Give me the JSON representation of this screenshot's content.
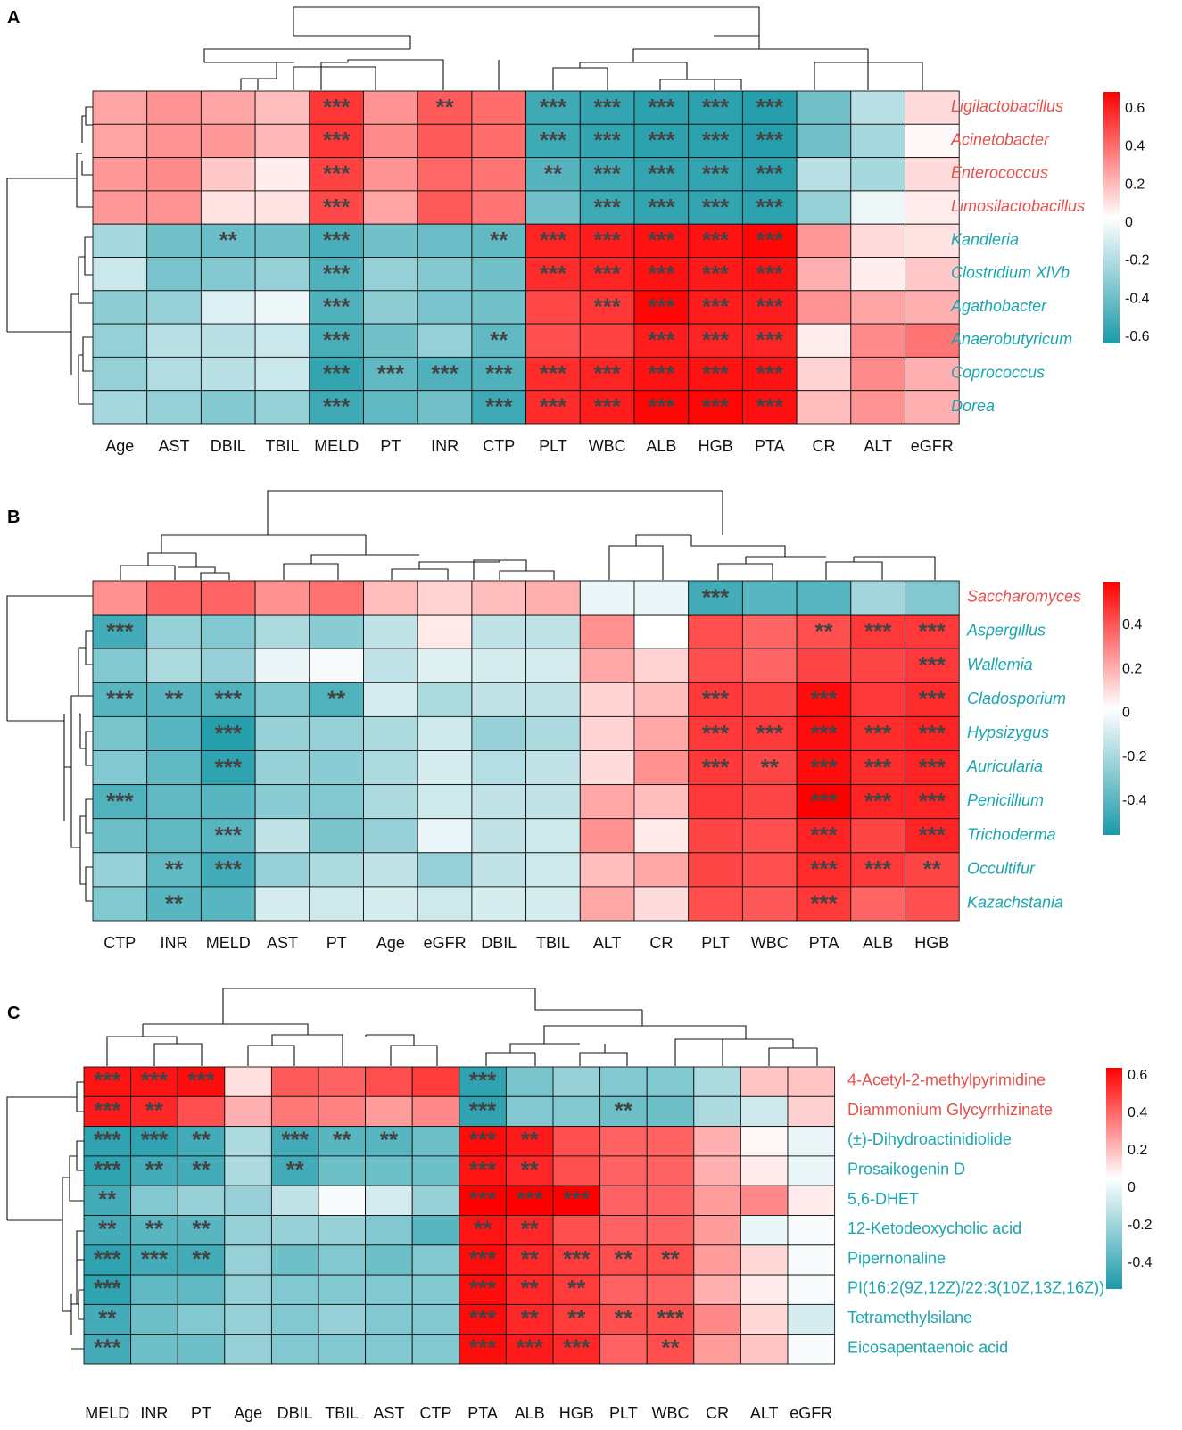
{
  "colors": {
    "neg": "#1a9aa8",
    "mid": "#ffffff",
    "pos": "#ff0000",
    "label_pos": "#e8504b",
    "label_neg": "#1aa6b0"
  },
  "chart_data": [
    {
      "type": "heatmap",
      "panel": "A",
      "columns": [
        "Age",
        "AST",
        "DBIL",
        "TBIL",
        "MELD",
        "PT",
        "INR",
        "CTP",
        "PLT",
        "WBC",
        "ALB",
        "HGB",
        "PTA",
        "CR",
        "ALT",
        "eGFR"
      ],
      "rows": [
        "Ligilactobacillus",
        "Acinetobacter",
        "Enterococcus",
        "Limosilactobacillus",
        "Kandleria",
        "Clostridium XlVb",
        "Agathobacter",
        "Anaerobutyricum",
        "Coprococcus",
        "Dorea"
      ],
      "row_groups": [
        "pos",
        "pos",
        "pos",
        "pos",
        "neg",
        "neg",
        "neg",
        "neg",
        "neg",
        "neg"
      ],
      "values": [
        [
          0.25,
          0.3,
          0.25,
          0.18,
          0.55,
          0.3,
          0.45,
          0.4,
          -0.55,
          -0.58,
          -0.6,
          -0.6,
          -0.62,
          -0.4,
          -0.2,
          0.1
        ],
        [
          0.25,
          0.3,
          0.28,
          0.2,
          0.55,
          0.32,
          0.45,
          0.4,
          -0.55,
          -0.58,
          -0.6,
          -0.6,
          -0.62,
          -0.4,
          -0.25,
          0.02
        ],
        [
          0.28,
          0.32,
          0.15,
          0.05,
          0.52,
          0.3,
          0.42,
          0.38,
          -0.48,
          -0.55,
          -0.58,
          -0.58,
          -0.6,
          -0.2,
          -0.25,
          0.1
        ],
        [
          0.28,
          0.3,
          0.08,
          0.08,
          0.5,
          0.25,
          0.45,
          0.38,
          -0.4,
          -0.55,
          -0.58,
          -0.58,
          -0.6,
          -0.3,
          -0.05,
          0.05
        ],
        [
          -0.25,
          -0.4,
          -0.42,
          -0.4,
          -0.52,
          -0.4,
          -0.42,
          -0.45,
          0.6,
          0.62,
          0.65,
          0.65,
          0.68,
          0.28,
          0.1,
          0.08
        ],
        [
          -0.15,
          -0.38,
          -0.35,
          -0.3,
          -0.5,
          -0.3,
          -0.35,
          -0.4,
          0.58,
          0.6,
          0.65,
          0.63,
          0.65,
          0.22,
          0.05,
          0.15
        ],
        [
          -0.32,
          -0.3,
          -0.1,
          -0.05,
          -0.5,
          -0.32,
          -0.38,
          -0.4,
          0.5,
          0.55,
          0.68,
          0.62,
          0.62,
          0.3,
          0.25,
          0.22
        ],
        [
          -0.3,
          -0.2,
          -0.2,
          -0.15,
          -0.52,
          -0.4,
          -0.3,
          -0.45,
          0.48,
          0.52,
          0.62,
          0.6,
          0.6,
          0.05,
          0.32,
          0.38
        ],
        [
          -0.3,
          -0.22,
          -0.2,
          -0.15,
          -0.58,
          -0.45,
          -0.5,
          -0.5,
          0.58,
          0.6,
          0.65,
          0.65,
          0.65,
          0.12,
          0.32,
          0.22
        ],
        [
          -0.25,
          -0.3,
          -0.35,
          -0.3,
          -0.55,
          -0.45,
          -0.4,
          -0.55,
          0.58,
          0.62,
          0.68,
          0.68,
          0.66,
          0.18,
          0.3,
          0.22
        ]
      ],
      "stars": [
        [
          "",
          "",
          "",
          "",
          "***",
          "",
          "**",
          "",
          "***",
          "***",
          "***",
          "***",
          "***",
          "",
          "",
          ""
        ],
        [
          "",
          "",
          "",
          "",
          "***",
          "",
          "",
          "",
          "***",
          "***",
          "***",
          "***",
          "***",
          "",
          "",
          ""
        ],
        [
          "",
          "",
          "",
          "",
          "***",
          "",
          "",
          "",
          "**",
          "***",
          "***",
          "***",
          "***",
          "",
          "",
          ""
        ],
        [
          "",
          "",
          "",
          "",
          "***",
          "",
          "",
          "",
          "",
          "***",
          "***",
          "***",
          "***",
          "",
          "",
          ""
        ],
        [
          "",
          "",
          "**",
          "",
          "***",
          "",
          "",
          "**",
          "***",
          "***",
          "***",
          "***",
          "***",
          "",
          "",
          ""
        ],
        [
          "",
          "",
          "",
          "",
          "***",
          "",
          "",
          "",
          "***",
          "***",
          "***",
          "***",
          "***",
          "",
          "",
          ""
        ],
        [
          "",
          "",
          "",
          "",
          "***",
          "",
          "",
          "",
          "",
          "***",
          "***",
          "***",
          "***",
          "",
          "",
          ""
        ],
        [
          "",
          "",
          "",
          "",
          "***",
          "",
          "",
          "**",
          "",
          "",
          "***",
          "***",
          "***",
          "",
          "",
          ""
        ],
        [
          "",
          "",
          "",
          "",
          "***",
          "***",
          "***",
          "***",
          "***",
          "***",
          "***",
          "***",
          "***",
          "",
          "",
          ""
        ],
        [
          "",
          "",
          "",
          "",
          "***",
          "",
          "",
          "***",
          "***",
          "***",
          "***",
          "***",
          "***",
          "",
          "",
          ""
        ]
      ],
      "legend_ticks": [
        "0.6",
        "0.4",
        "0.2",
        "0",
        "-0.2",
        "-0.4",
        "-0.6"
      ],
      "legend_range": [
        -0.65,
        0.7
      ]
    },
    {
      "type": "heatmap",
      "panel": "B",
      "columns": [
        "CTP",
        "INR",
        "MELD",
        "AST",
        "PT",
        "Age",
        "eGFR",
        "DBIL",
        "TBIL",
        "ALT",
        "CR",
        "PLT",
        "WBC",
        "PTA",
        "ALB",
        "HGB"
      ],
      "rows": [
        "Saccharomyces",
        "Aspergillus",
        "Wallemia",
        "Cladosporium",
        "Hypsizygus",
        "Auricularia",
        "Penicillium",
        "Trichoderma",
        "Occultifur",
        "Kazachstania"
      ],
      "row_groups": [
        "pos",
        "neg",
        "neg",
        "neg",
        "neg",
        "neg",
        "neg",
        "neg",
        "neg",
        "neg"
      ],
      "values": [
        [
          0.25,
          0.35,
          0.35,
          0.25,
          0.32,
          0.15,
          0.1,
          0.15,
          0.18,
          -0.05,
          -0.05,
          -0.45,
          -0.4,
          -0.4,
          -0.22,
          -0.3
        ],
        [
          -0.45,
          -0.25,
          -0.3,
          -0.2,
          -0.28,
          -0.15,
          0.05,
          -0.15,
          -0.15,
          0.25,
          0.0,
          0.4,
          0.35,
          0.4,
          0.45,
          0.45
        ],
        [
          -0.3,
          -0.2,
          -0.25,
          -0.05,
          -0.02,
          -0.15,
          -0.08,
          -0.1,
          -0.1,
          0.2,
          0.1,
          0.4,
          0.35,
          0.42,
          0.42,
          0.45
        ],
        [
          -0.4,
          -0.4,
          -0.42,
          -0.3,
          -0.42,
          -0.1,
          -0.2,
          -0.15,
          -0.15,
          0.1,
          0.15,
          0.45,
          0.42,
          0.55,
          0.45,
          0.48
        ],
        [
          -0.32,
          -0.4,
          -0.52,
          -0.25,
          -0.25,
          -0.2,
          -0.12,
          -0.25,
          -0.2,
          0.1,
          0.2,
          0.45,
          0.45,
          0.55,
          0.48,
          0.5
        ],
        [
          -0.3,
          -0.38,
          -0.5,
          -0.25,
          -0.28,
          -0.2,
          -0.1,
          -0.18,
          -0.15,
          0.08,
          0.25,
          0.45,
          0.42,
          0.55,
          0.48,
          0.5
        ],
        [
          -0.42,
          -0.38,
          -0.4,
          -0.28,
          -0.3,
          -0.2,
          -0.12,
          -0.15,
          -0.15,
          0.2,
          0.15,
          0.45,
          0.42,
          0.58,
          0.5,
          0.5
        ],
        [
          -0.35,
          -0.38,
          -0.4,
          -0.15,
          -0.32,
          -0.25,
          -0.05,
          -0.15,
          -0.12,
          0.25,
          0.05,
          0.42,
          0.4,
          0.5,
          0.42,
          0.5
        ],
        [
          -0.25,
          -0.38,
          -0.45,
          -0.25,
          -0.2,
          -0.15,
          -0.25,
          -0.15,
          -0.12,
          0.15,
          0.2,
          0.42,
          0.4,
          0.48,
          0.45,
          0.42
        ],
        [
          -0.3,
          -0.4,
          -0.4,
          -0.1,
          -0.12,
          -0.1,
          -0.12,
          -0.1,
          -0.1,
          0.2,
          0.08,
          0.4,
          0.38,
          0.45,
          0.35,
          0.4
        ]
      ],
      "stars": [
        [
          "",
          "",
          "",
          "",
          "",
          "",
          "",
          "",
          "",
          "",
          "",
          "***",
          "",
          "",
          "",
          ""
        ],
        [
          "***",
          "",
          "",
          "",
          "",
          "",
          "",
          "",
          "",
          "",
          "",
          "",
          "",
          "**",
          "***",
          "***"
        ],
        [
          "",
          "",
          "",
          "",
          "",
          "",
          "",
          "",
          "",
          "",
          "",
          "",
          "",
          "",
          "",
          "***"
        ],
        [
          "***",
          "**",
          "***",
          "",
          "**",
          "",
          "",
          "",
          "",
          "",
          "",
          "***",
          "",
          "***",
          "",
          "***"
        ],
        [
          "",
          "",
          "***",
          "",
          "",
          "",
          "",
          "",
          "",
          "",
          "",
          "***",
          "***",
          "***",
          "***",
          "***"
        ],
        [
          "",
          "",
          "***",
          "",
          "",
          "",
          "",
          "",
          "",
          "",
          "",
          "***",
          "**",
          "***",
          "***",
          "***"
        ],
        [
          "***",
          "",
          "",
          "",
          "",
          "",
          "",
          "",
          "",
          "",
          "",
          "",
          "",
          "***",
          "***",
          "***"
        ],
        [
          "",
          "",
          "***",
          "",
          "",
          "",
          "",
          "",
          "",
          "",
          "",
          "",
          "",
          "***",
          "",
          "***"
        ],
        [
          "",
          "**",
          "***",
          "",
          "",
          "",
          "",
          "",
          "",
          "",
          "",
          "",
          "",
          "***",
          "***",
          "**"
        ],
        [
          "",
          "**",
          "",
          "",
          "",
          "",
          "",
          "",
          "",
          "",
          "",
          "",
          "",
          "***",
          "",
          ""
        ]
      ],
      "legend_ticks": [
        "0.4",
        "0.2",
        "0",
        "-0.2",
        "-0.4"
      ],
      "legend_range": [
        -0.55,
        0.58
      ]
    },
    {
      "type": "heatmap",
      "panel": "C",
      "columns": [
        "MELD",
        "INR",
        "PT",
        "Age",
        "DBIL",
        "TBIL",
        "AST",
        "CTP",
        "PTA",
        "ALB",
        "HGB",
        "PLT",
        "WBC",
        "CR",
        "ALT",
        "eGFR"
      ],
      "rows": [
        "4-Acetyl-2-methylpyrimidine",
        "Diammonium Glycyrrhizinate",
        "(±)-Dihydroactinidiolide",
        "Prosaikogenin D",
        "5,6-DHET",
        "12-Ketodeoxycholic acid",
        "Pipernonaline",
        "PI(16:2(9Z,12Z)/22:3(10Z,13Z,16Z))",
        "Tetramethylsilane",
        "Eicosapentaenoic acid"
      ],
      "row_groups": [
        "pos",
        "pos",
        "neg",
        "neg",
        "neg",
        "neg",
        "neg",
        "neg",
        "neg",
        "neg"
      ],
      "values": [
        [
          0.6,
          0.6,
          0.62,
          0.08,
          0.42,
          0.4,
          0.45,
          0.5,
          -0.5,
          -0.32,
          -0.25,
          -0.3,
          -0.3,
          -0.2,
          0.15,
          0.15
        ],
        [
          0.58,
          0.55,
          0.45,
          0.2,
          0.35,
          0.32,
          0.25,
          0.3,
          -0.5,
          -0.3,
          -0.3,
          -0.35,
          -0.35,
          -0.2,
          -0.12,
          0.12
        ],
        [
          -0.5,
          -0.5,
          -0.45,
          -0.2,
          -0.45,
          -0.4,
          -0.4,
          -0.35,
          0.62,
          0.58,
          0.45,
          0.4,
          0.4,
          0.2,
          0.02,
          -0.05
        ],
        [
          -0.5,
          -0.45,
          -0.45,
          -0.2,
          -0.45,
          -0.35,
          -0.35,
          -0.35,
          0.6,
          0.55,
          0.45,
          0.4,
          0.4,
          0.2,
          0.05,
          -0.05
        ],
        [
          -0.45,
          -0.3,
          -0.25,
          -0.25,
          -0.15,
          -0.02,
          -0.1,
          -0.25,
          0.65,
          0.68,
          0.65,
          0.4,
          0.4,
          0.25,
          0.3,
          0.05
        ],
        [
          -0.45,
          -0.4,
          -0.4,
          -0.25,
          -0.25,
          -0.25,
          -0.3,
          -0.4,
          0.6,
          0.55,
          0.45,
          0.4,
          0.4,
          0.25,
          -0.05,
          -0.02
        ],
        [
          -0.5,
          -0.45,
          -0.45,
          -0.25,
          -0.35,
          -0.3,
          -0.35,
          -0.3,
          0.62,
          0.55,
          0.5,
          0.45,
          0.45,
          0.25,
          0.1,
          -0.02
        ],
        [
          -0.5,
          -0.38,
          -0.38,
          -0.25,
          -0.3,
          -0.3,
          -0.3,
          -0.3,
          0.62,
          0.55,
          0.5,
          0.4,
          0.4,
          0.2,
          0.05,
          -0.02
        ],
        [
          -0.45,
          -0.35,
          -0.3,
          -0.25,
          -0.3,
          -0.25,
          -0.3,
          -0.3,
          0.62,
          0.55,
          0.5,
          0.45,
          0.45,
          0.3,
          0.1,
          -0.1
        ],
        [
          -0.45,
          -0.35,
          -0.35,
          -0.25,
          -0.3,
          -0.3,
          -0.3,
          -0.3,
          0.62,
          0.58,
          0.55,
          0.4,
          0.45,
          0.25,
          0.15,
          -0.02
        ]
      ],
      "stars": [
        [
          "***",
          "***",
          "***",
          "",
          "",
          "",
          "",
          "",
          "***",
          "",
          "",
          "",
          "",
          "",
          "",
          ""
        ],
        [
          "***",
          "**",
          "",
          "",
          "",
          "",
          "",
          "",
          "***",
          "",
          "",
          "**",
          "",
          "",
          "",
          ""
        ],
        [
          "***",
          "***",
          "**",
          "",
          "***",
          "**",
          "**",
          "",
          "***",
          "**",
          "",
          "",
          "",
          "",
          "",
          ""
        ],
        [
          "***",
          "**",
          "**",
          "",
          "**",
          "",
          "",
          "",
          "***",
          "**",
          "",
          "",
          "",
          "",
          "",
          ""
        ],
        [
          "**",
          "",
          "",
          "",
          "",
          "",
          "",
          "",
          "***",
          "***",
          "***",
          "",
          "",
          "",
          "",
          ""
        ],
        [
          "**",
          "**",
          "**",
          "",
          "",
          "",
          "",
          "",
          "**",
          "**",
          "",
          "",
          "",
          "",
          "",
          ""
        ],
        [
          "***",
          "***",
          "**",
          "",
          "",
          "",
          "",
          "",
          "***",
          "**",
          "***",
          "**",
          "**",
          "",
          "",
          ""
        ],
        [
          "***",
          "",
          "",
          "",
          "",
          "",
          "",
          "",
          "***",
          "**",
          "**",
          "",
          "",
          "",
          "",
          ""
        ],
        [
          "**",
          "",
          "",
          "",
          "",
          "",
          "",
          "",
          "***",
          "**",
          "**",
          "**",
          "***",
          "",
          "",
          ""
        ],
        [
          "***",
          "",
          "",
          "",
          "",
          "",
          "",
          "",
          "***",
          "***",
          "***",
          "",
          "**",
          "",
          "",
          ""
        ]
      ],
      "legend_ticks": [
        "0.6",
        "0.4",
        "0.2",
        "0",
        "-0.2",
        "-0.4"
      ],
      "legend_range": [
        -0.55,
        0.65
      ]
    }
  ]
}
